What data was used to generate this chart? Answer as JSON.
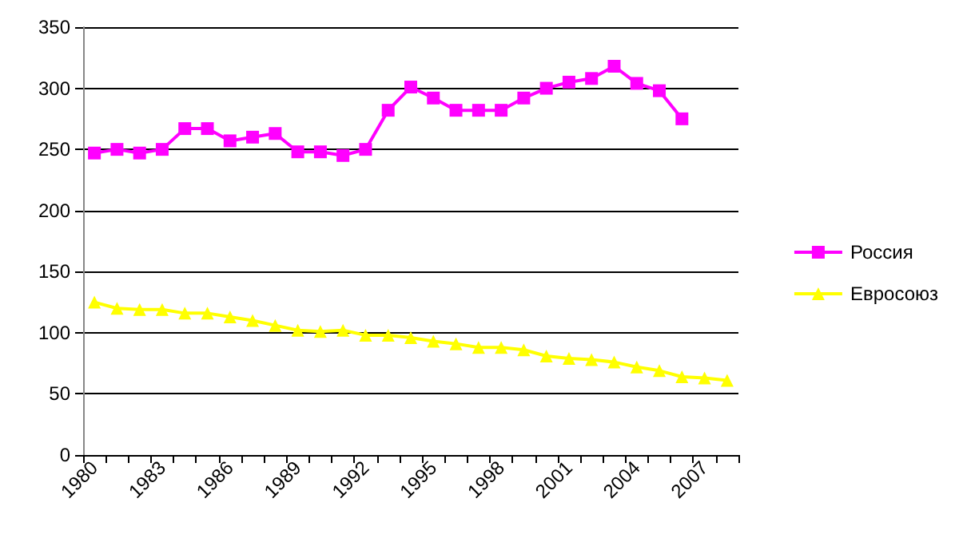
{
  "chart_data": {
    "type": "line",
    "categories": [
      "1980",
      null,
      null,
      "1983",
      null,
      null,
      "1986",
      null,
      null,
      "1989",
      null,
      null,
      "1992",
      null,
      null,
      "1995",
      null,
      null,
      "1998",
      null,
      null,
      "2001",
      null,
      null,
      "2004",
      null,
      null,
      "2007",
      null
    ],
    "series": [
      {
        "name": "Россия",
        "color": "#ff00ff",
        "marker": "square",
        "values": [
          247,
          250,
          247,
          250,
          267,
          267,
          257,
          260,
          263,
          248,
          248,
          245,
          250,
          282,
          301,
          292,
          282,
          282,
          282,
          292,
          300,
          305,
          308,
          318,
          304,
          298,
          275,
          null,
          null
        ]
      },
      {
        "name": "Евросоюз",
        "color": "#ffff00",
        "marker": "triangle",
        "values": [
          125,
          120,
          119,
          119,
          116,
          116,
          113,
          110,
          106,
          102,
          101,
          102,
          98,
          98,
          96,
          93,
          91,
          88,
          88,
          86,
          81,
          79,
          78,
          76,
          72,
          69,
          64,
          63,
          61
        ]
      }
    ],
    "ylim": [
      0,
      350
    ],
    "yticks": [
      0,
      50,
      100,
      150,
      200,
      250,
      300,
      350
    ],
    "grid": "y",
    "legend": "right"
  }
}
